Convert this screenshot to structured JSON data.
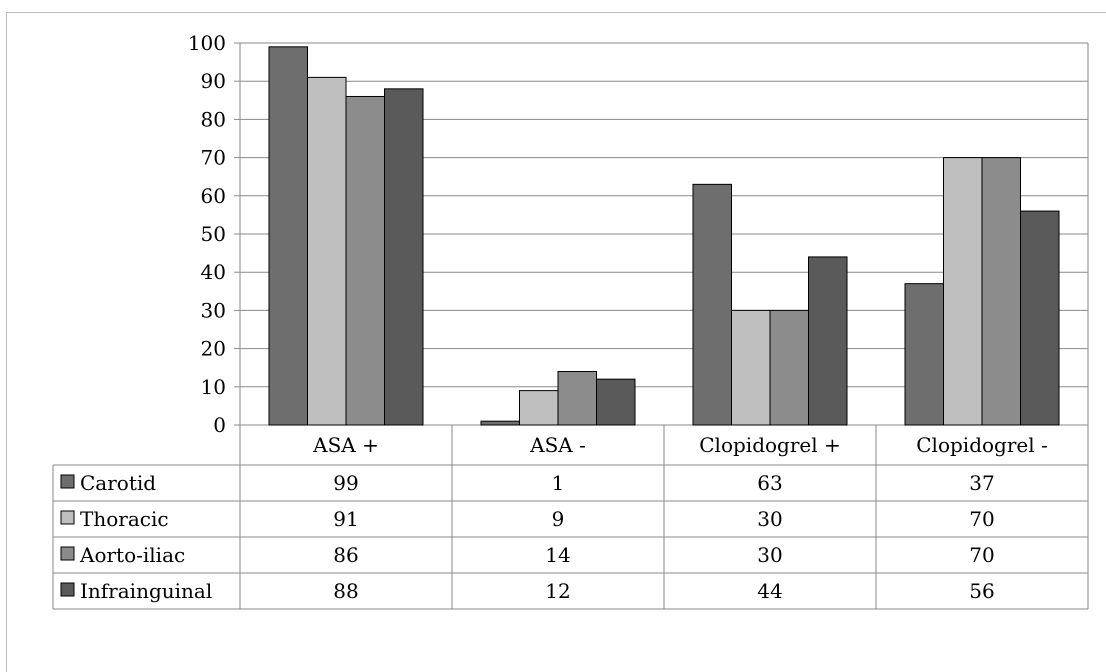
{
  "chart_data": {
    "type": "bar",
    "title": "",
    "xlabel": "",
    "ylabel": "",
    "ylim": [
      0,
      100
    ],
    "yticks": [
      0,
      10,
      20,
      30,
      40,
      50,
      60,
      70,
      80,
      90,
      100
    ],
    "categories": [
      "ASA +",
      "ASA -",
      "Clopidogrel +",
      "Clopidogrel -"
    ],
    "series": [
      {
        "name": "Carotid",
        "color": "#6e6e6e",
        "values": [
          99,
          1,
          63,
          37
        ]
      },
      {
        "name": "Thoracic",
        "color": "#bfbfbf",
        "values": [
          91,
          9,
          30,
          70
        ]
      },
      {
        "name": "Aorto-iliac",
        "color": "#8c8c8c",
        "values": [
          86,
          14,
          30,
          70
        ]
      },
      {
        "name": "Infrainguinal",
        "color": "#5a5a5a",
        "values": [
          88,
          12,
          44,
          56
        ]
      }
    ],
    "grid": true,
    "legend": "data-table-left"
  }
}
